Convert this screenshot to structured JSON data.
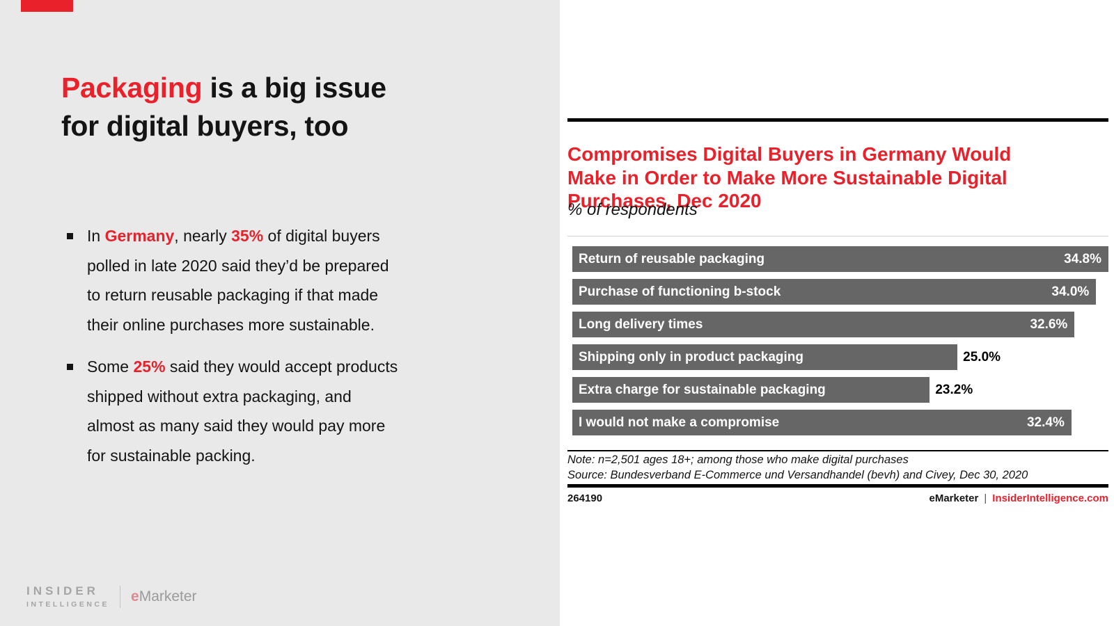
{
  "colors": {
    "accent_red": "#e8212b",
    "bar_gray": "#666666",
    "panel_gray": "#e9e9e9",
    "logo_gray": "#a5a5a5"
  },
  "left_panel": {
    "title_segments": [
      {
        "text": "Packaging",
        "style": "accent"
      },
      {
        "text": " is a big issue\nfor digital buyers, too",
        "style": "normal"
      }
    ],
    "bullets": [
      {
        "segments": [
          {
            "text": "In ",
            "style": "normal"
          },
          {
            "text": "Germany",
            "style": "accent-bold"
          },
          {
            "text": ", nearly ",
            "style": "normal"
          },
          {
            "text": "35%",
            "style": "accent-bold"
          },
          {
            "text": " of digital buyers\npolled in late 2020 said they’d be prepared\nto return reusable packaging if that made\ntheir online purchases more sustainable.",
            "style": "normal"
          }
        ]
      },
      {
        "segments": [
          {
            "text": "Some ",
            "style": "normal"
          },
          {
            "text": "25%",
            "style": "accent-bold"
          },
          {
            "text": " said they would accept products\nshipped without extra packaging, and\nalmost as many said they would pay more\nfor sustainable packing.",
            "style": "normal"
          }
        ]
      }
    ],
    "logo": {
      "line1": "INSIDER",
      "line2": "INTELLIGENCE",
      "brand_e": "e",
      "brand_rest": "Marketer"
    }
  },
  "chart": {
    "title_display": "Compromises Digital Buyers in Germany Would\nMake in Order to Make More Sustainable Digital\nPurchases, Dec 2020"
  },
  "chart_data": {
    "type": "bar",
    "orientation": "horizontal",
    "title": "Compromises Digital Buyers in Germany Would Make in Order to Make More Sustainable Digital Purchases, Dec 2020",
    "subtitle": "% of respondents",
    "categories": [
      "Return of reusable packaging",
      "Purchase of functioning b-stock",
      "Long delivery times",
      "Shipping only in product packaging",
      "Extra charge for sustainable packaging",
      "I would not make a compromise"
    ],
    "values": [
      34.8,
      34.0,
      32.6,
      25.0,
      23.2,
      32.4
    ],
    "value_suffix": "%",
    "value_labels": [
      "34.8%",
      "34.0%",
      "32.6%",
      "25.0%",
      "23.2%",
      "32.4%"
    ],
    "xlabel": "",
    "ylabel": "",
    "xlim": [
      0,
      34.8
    ],
    "grid": false,
    "legend": false,
    "bar_color": "#666666",
    "note": "Note: n=2,501 ages 18+; among those who make digital purchases",
    "source": "Source: Bundesverband E-Commerce und Versandhandel (bevh) and Civey, Dec 30, 2020",
    "footer_id": "264190",
    "footer_brand": "eMarketer",
    "footer_separator": "|",
    "footer_site": "InsiderIntelligence.com"
  }
}
